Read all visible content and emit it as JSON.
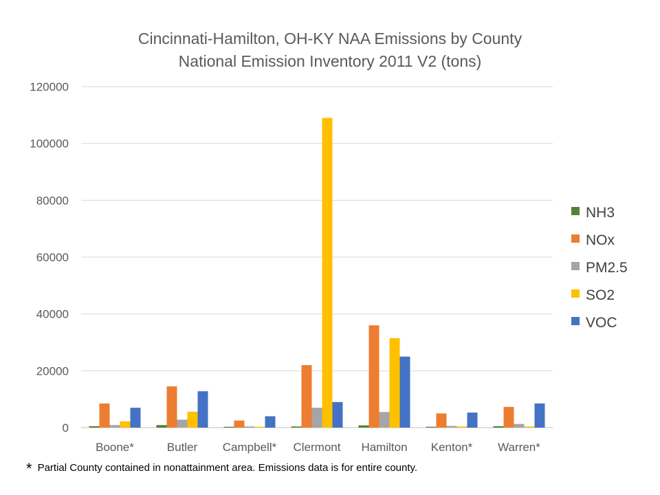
{
  "chart_data": {
    "type": "bar",
    "title": [
      "Cincinnati-Hamilton, OH-KY NAA Emissions by County",
      "National Emission Inventory 2011 V2 (tons)"
    ],
    "categories": [
      "Boone*",
      "Butler",
      "Campbell*",
      "Clermont",
      "Hamilton",
      "Kenton*",
      "Warren*"
    ],
    "ylim": [
      0,
      120000
    ],
    "yticks": [
      "0",
      "20000",
      "40000",
      "60000",
      "80000",
      "100000",
      "120000"
    ],
    "ytick_values": [
      0,
      20000,
      40000,
      60000,
      80000,
      100000,
      120000
    ],
    "grid": true,
    "legend_position": "right",
    "series": [
      {
        "name": "NH3",
        "color": "#548235",
        "values": [
          500,
          900,
          300,
          400,
          800,
          300,
          500
        ]
      },
      {
        "name": "NOx",
        "color": "#ED7D31",
        "values": [
          8500,
          14500,
          2500,
          22000,
          36000,
          5000,
          7300
        ]
      },
      {
        "name": "PM2.5",
        "color": "#A5A5A5",
        "values": [
          900,
          2800,
          400,
          7000,
          5500,
          600,
          1300
        ]
      },
      {
        "name": "SO2",
        "color": "#FFC000",
        "values": [
          2200,
          5600,
          300,
          109000,
          31500,
          400,
          400
        ]
      },
      {
        "name": "VOC",
        "color": "#4472C4",
        "values": [
          7000,
          12800,
          4000,
          9000,
          25000,
          5300,
          8500
        ]
      }
    ]
  },
  "footnote": {
    "symbol": "*",
    "text": "Partial County contained in nonattainment area.  Emissions data is for entire county."
  }
}
